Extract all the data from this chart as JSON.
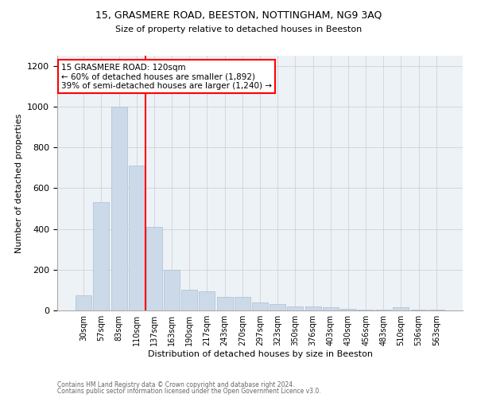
{
  "title1": "15, GRASMERE ROAD, BEESTON, NOTTINGHAM, NG9 3AQ",
  "title2": "Size of property relative to detached houses in Beeston",
  "xlabel": "Distribution of detached houses by size in Beeston",
  "ylabel": "Number of detached properties",
  "footnote1": "Contains HM Land Registry data © Crown copyright and database right 2024.",
  "footnote2": "Contains public sector information licensed under the Open Government Licence v3.0.",
  "annotation_line1": "15 GRASMERE ROAD: 120sqm",
  "annotation_line2": "← 60% of detached houses are smaller (1,892)",
  "annotation_line3": "39% of semi-detached houses are larger (1,240) →",
  "bar_color": "#ccd9e8",
  "bar_edge_color": "#a8bfd0",
  "categories": [
    "30sqm",
    "57sqm",
    "83sqm",
    "110sqm",
    "137sqm",
    "163sqm",
    "190sqm",
    "217sqm",
    "243sqm",
    "270sqm",
    "297sqm",
    "323sqm",
    "350sqm",
    "376sqm",
    "403sqm",
    "430sqm",
    "456sqm",
    "483sqm",
    "510sqm",
    "536sqm",
    "563sqm"
  ],
  "values": [
    75,
    530,
    1000,
    710,
    410,
    200,
    100,
    95,
    65,
    65,
    40,
    30,
    20,
    18,
    15,
    8,
    5,
    4,
    15,
    4,
    4
  ],
  "ylim": [
    0,
    1250
  ],
  "yticks": [
    0,
    200,
    400,
    600,
    800,
    1000,
    1200
  ],
  "figsize": [
    6.0,
    5.0
  ],
  "dpi": 100,
  "bg_color": "#edf2f7"
}
